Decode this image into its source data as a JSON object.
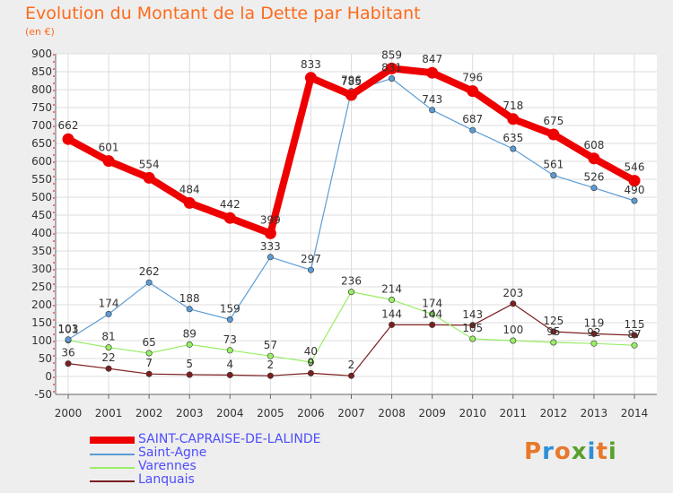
{
  "title": "Evolution du Montant de la Dette par Habitant",
  "subtitle": "(en €)",
  "logo": {
    "text": "Proxiti",
    "colors": [
      "#e8792b",
      "#2e8fd8",
      "#e8792b",
      "#5aa02c",
      "#2e8fd8",
      "#e8792b",
      "#5aa02c"
    ]
  },
  "chart_data": {
    "type": "line",
    "title": "Evolution du Montant de la Dette par Habitant",
    "ylabel": "(en €)",
    "xlabel": "",
    "ylim": [
      -50,
      900
    ],
    "yticks": [
      -50,
      0,
      50,
      100,
      150,
      200,
      250,
      300,
      350,
      400,
      450,
      500,
      550,
      600,
      650,
      700,
      750,
      800,
      850,
      900
    ],
    "categories": [
      "2000",
      "2001",
      "2002",
      "2003",
      "2004",
      "2005",
      "2006",
      "2007",
      "2008",
      "2009",
      "2010",
      "2011",
      "2012",
      "2013",
      "2014"
    ],
    "series": [
      {
        "name": "SAINT-CAPRAISE-DE-LALINDE",
        "color": "#ee0000",
        "width": 8,
        "values": [
          662,
          601,
          554,
          484,
          442,
          399,
          833,
          785,
          859,
          847,
          796,
          718,
          675,
          608,
          546
        ]
      },
      {
        "name": "Saint-Agne",
        "color": "#5b9bd5",
        "width": 1.2,
        "values": [
          103,
          174,
          262,
          188,
          159,
          333,
          297,
          796,
          831,
          743,
          687,
          635,
          561,
          526,
          490
        ]
      },
      {
        "name": "Varennes",
        "color": "#99ee66",
        "width": 1.2,
        "values": [
          101,
          81,
          65,
          89,
          73,
          57,
          40,
          236,
          214,
          174,
          105,
          100,
          95,
          92,
          87
        ]
      },
      {
        "name": "Lanquais",
        "color": "#7b1f1f",
        "width": 1.2,
        "values": [
          36,
          22,
          7,
          5,
          4,
          2,
          9,
          2,
          144,
          144,
          143,
          203,
          125,
          119,
          115
        ]
      }
    ],
    "labels": [
      {
        "series": 0,
        "text": [
          "662",
          "601",
          "554",
          "484",
          "442",
          "399",
          "833",
          "785",
          "859",
          "847",
          "796",
          "718",
          "675",
          "608",
          "546"
        ]
      },
      {
        "series": 1,
        "text": [
          "103",
          "174",
          "262",
          "188",
          "159",
          "333",
          "297",
          "796",
          "831",
          "743",
          "687",
          "635",
          "561",
          "526",
          "490"
        ]
      },
      {
        "series": 2,
        "text": [
          "101",
          "81",
          "65",
          "89",
          "73",
          "57",
          "40",
          "236",
          "214",
          "174",
          "105",
          "100",
          "95",
          "92",
          "87"
        ]
      },
      {
        "series": 3,
        "text": [
          "36",
          "22",
          "7",
          "5",
          "4",
          "2",
          "9",
          "2",
          "144",
          "144",
          "143",
          "203",
          "125",
          "119",
          "115"
        ]
      }
    ]
  }
}
